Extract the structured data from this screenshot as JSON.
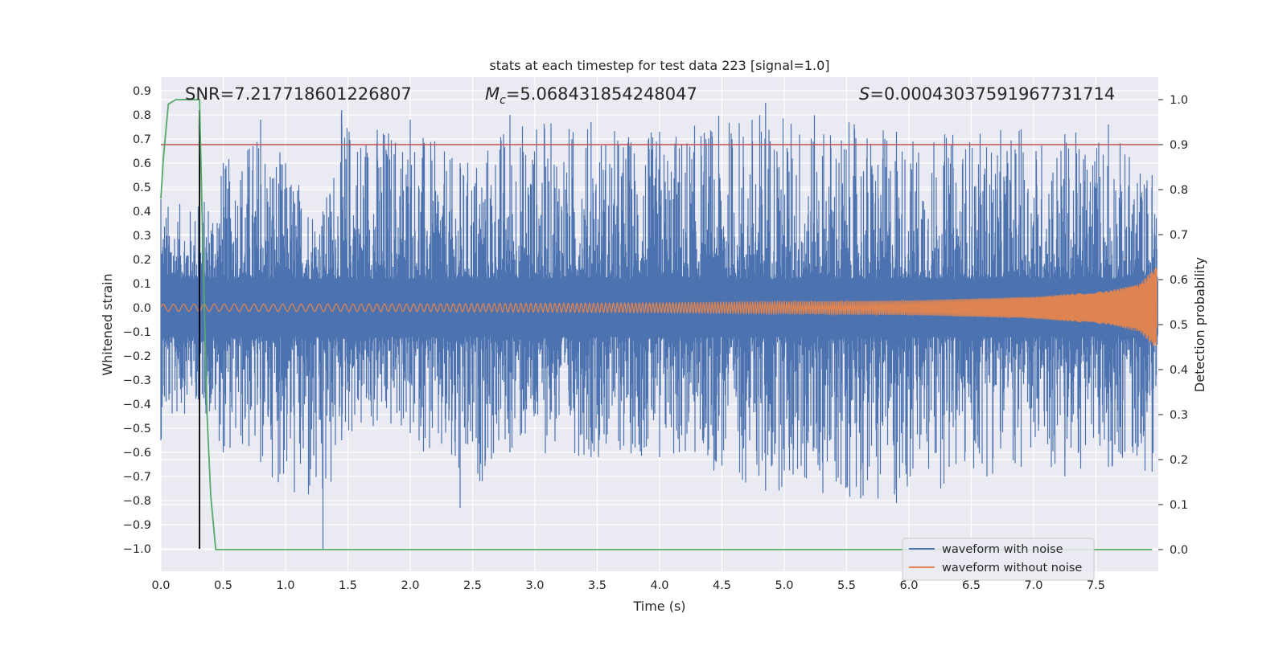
{
  "chart_data": {
    "type": "line",
    "title": "stats at each timestep for test data 223 [signal=1.0]",
    "xlabel": "Time (s)",
    "ylabel": "Whitened strain",
    "y2label": "Detection probability",
    "xlim": [
      0.0,
      8.0
    ],
    "ylim": [
      -1.09,
      0.95
    ],
    "y2lim": [
      -0.05,
      1.04
    ],
    "xticks": [
      "0.0",
      "0.5",
      "1.0",
      "1.5",
      "2.0",
      "2.5",
      "3.0",
      "3.5",
      "4.0",
      "4.5",
      "5.0",
      "5.5",
      "6.0",
      "6.5",
      "7.0",
      "7.5"
    ],
    "yticks": [
      "0.9",
      "0.8",
      "0.7",
      "0.6",
      "0.5",
      "0.4",
      "0.3",
      "0.2",
      "0.1",
      "0.0",
      "−0.1",
      "−0.2",
      "−0.3",
      "−0.4",
      "−0.5",
      "−0.6",
      "−0.7",
      "−0.8",
      "−0.9",
      "−1.0"
    ],
    "y2ticks": [
      "1.0",
      "0.9",
      "0.8",
      "0.7",
      "0.6",
      "0.5",
      "0.4",
      "0.3",
      "0.2",
      "0.1",
      "0.0"
    ],
    "grid": true,
    "legend_position": "bottom-right",
    "annotations": {
      "snr": "SNR=7.217718601226807",
      "mc_prefix": "M",
      "mc_sub": "c",
      "mc_value": "=5.068431854248047",
      "s_prefix": "S",
      "s_value": "=0.00043037591967731714"
    },
    "series": [
      {
        "name": "waveform with noise",
        "color": "#4c72b0",
        "axis": "left",
        "description_points": [
          [
            0.0,
            0.45,
            -0.55
          ],
          [
            0.3,
            0.42,
            -0.38
          ],
          [
            0.5,
            0.6,
            -0.6
          ],
          [
            0.8,
            0.78,
            -0.64
          ],
          [
            1.3,
            0.4,
            -1.0
          ],
          [
            1.45,
            0.82,
            -0.55
          ],
          [
            2.0,
            0.78,
            -0.52
          ],
          [
            2.4,
            0.6,
            -0.83
          ],
          [
            2.8,
            0.8,
            -0.6
          ],
          [
            3.45,
            0.77,
            -0.62
          ],
          [
            4.0,
            0.73,
            -0.62
          ],
          [
            4.85,
            0.85,
            -0.76
          ],
          [
            5.9,
            0.73,
            -0.81
          ],
          [
            6.9,
            0.74,
            -0.66
          ],
          [
            7.25,
            0.72,
            -0.7
          ],
          [
            7.6,
            0.76,
            -0.66
          ],
          [
            7.95,
            0.55,
            -0.68
          ]
        ]
      },
      {
        "name": "waveform without noise",
        "color": "#dd8452",
        "axis": "left",
        "amplitude_points": [
          [
            0.0,
            0.015
          ],
          [
            2.0,
            0.016
          ],
          [
            4.0,
            0.02
          ],
          [
            6.0,
            0.03
          ],
          [
            7.0,
            0.045
          ],
          [
            7.6,
            0.07
          ],
          [
            7.85,
            0.1
          ],
          [
            7.98,
            0.17
          ]
        ]
      },
      {
        "color": "#55a868",
        "axis": "right",
        "x": [
          0.0,
          0.02,
          0.06,
          0.12,
          0.2,
          0.28,
          0.31,
          0.33,
          0.37,
          0.4,
          0.44,
          0.5,
          1.0,
          1.3,
          2.0,
          3.0,
          4.0,
          5.0,
          6.0,
          7.0,
          7.95
        ],
        "y": [
          0.78,
          0.87,
          0.99,
          1.0,
          1.0,
          1.0,
          1.0,
          0.75,
          0.3,
          0.12,
          0.0,
          0.0,
          0.0,
          0.0,
          0.0,
          0.0,
          0.0,
          0.0,
          0.0,
          0.0,
          0.0
        ]
      },
      {
        "color": "#c44e52",
        "axis": "right",
        "x": [
          0.0,
          8.0
        ],
        "y": [
          0.9,
          0.9
        ]
      }
    ],
    "vline": {
      "x": 0.31,
      "color": "#000000",
      "y_from": -1.0,
      "y_to": 0.82
    }
  }
}
